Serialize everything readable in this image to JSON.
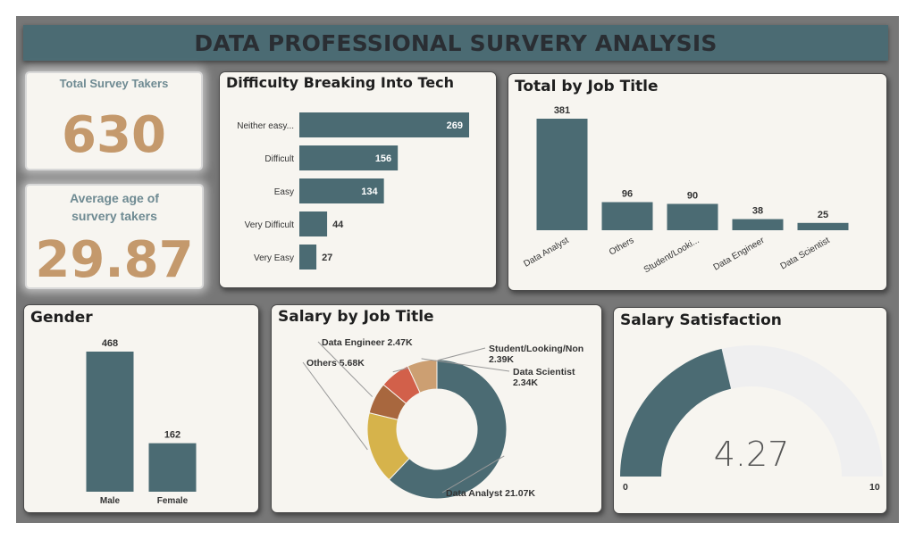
{
  "header": {
    "title": "DATA PROFESSIONAL SURVERY ANALYSIS"
  },
  "kpis": {
    "total_label": "Total Survey Takers",
    "total_value": "630",
    "age_label": "Average age of survery takers",
    "age_value": "29.87"
  },
  "colors": {
    "bar": "#4b6b73",
    "kpi_value": "#c4996c",
    "kpi_label": "#6e8a92",
    "gauge_track": "#efeff0"
  },
  "chart_data": [
    {
      "id": "difficulty",
      "type": "bar",
      "orientation": "horizontal",
      "title": "Difficulty Breaking Into Tech",
      "categories": [
        "Neither easy...",
        "Difficult",
        "Easy",
        "Very Difficult",
        "Very Easy"
      ],
      "values": [
        269,
        156,
        134,
        44,
        27
      ]
    },
    {
      "id": "job",
      "type": "bar",
      "title": "Total by Job Title",
      "categories": [
        "Data Analyst",
        "Others",
        "Student/Looki...",
        "Data Engineer",
        "Data Scientist"
      ],
      "values": [
        381,
        96,
        90,
        38,
        25
      ]
    },
    {
      "id": "gender",
      "type": "bar",
      "title": "Gender",
      "categories": [
        "Male",
        "Female"
      ],
      "values": [
        468,
        162
      ]
    },
    {
      "id": "salary",
      "type": "pie",
      "donut": true,
      "title": "Salary by Job Title",
      "slices": [
        {
          "label": "Data Analyst 21.07K",
          "value": 21.07,
          "color": "#4b6b73"
        },
        {
          "label": "Others 5.68K",
          "value": 5.68,
          "color": "#d6b34b"
        },
        {
          "label": "Data Engineer 2.47K",
          "value": 2.47,
          "color": "#a8673e"
        },
        {
          "label": "Student/Looking/Non 2.39K",
          "value": 2.39,
          "color": "#d2604a"
        },
        {
          "label": "Data Scientist 2.34K",
          "value": 2.34,
          "color": "#cc9f72"
        }
      ]
    },
    {
      "id": "satisfaction",
      "type": "gauge",
      "title": "Salary Satisfaction",
      "value": 4.27,
      "value_label": "4.27",
      "min": 0,
      "max": 10,
      "min_label": "0",
      "max_label": "10"
    }
  ]
}
